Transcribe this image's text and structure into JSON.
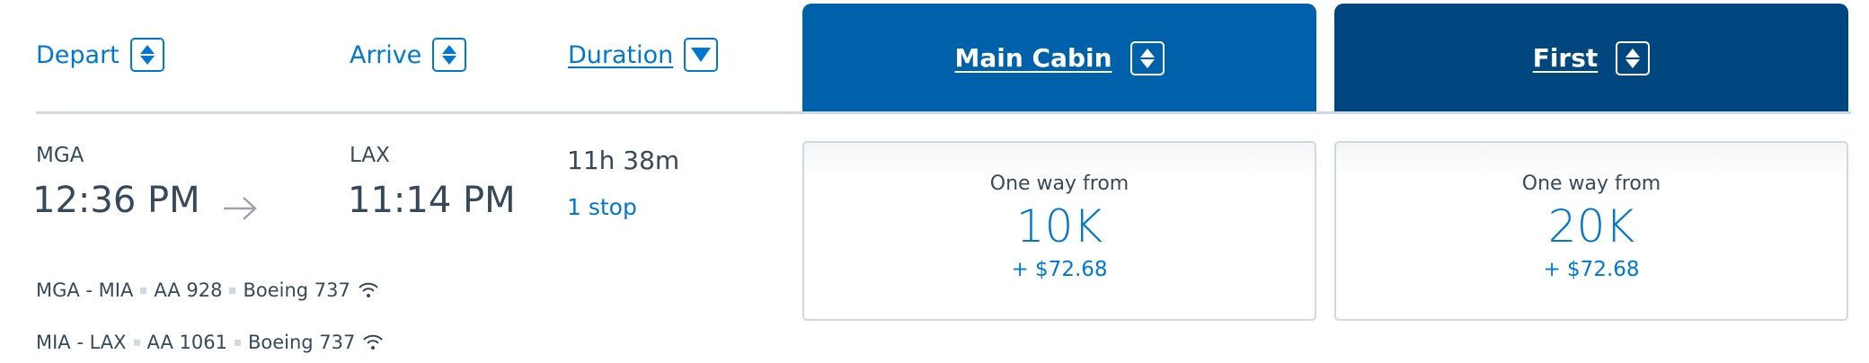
{
  "colors": {
    "link": "#0078d2",
    "main_cabin": "#0061ab",
    "first": "#00467f",
    "text": "#36495a"
  },
  "headers": {
    "depart": {
      "label": "Depart",
      "icon": "sort-both-icon"
    },
    "arrive": {
      "label": "Arrive",
      "icon": "sort-both-icon"
    },
    "duration": {
      "label": "Duration",
      "icon": "sort-down-icon"
    },
    "main_cabin": {
      "label": "Main Cabin",
      "icon": "sort-both-icon"
    },
    "first": {
      "label": "First",
      "icon": "sort-both-icon"
    }
  },
  "flight": {
    "origin": "MGA",
    "depart_time": "12:36 PM",
    "destination": "LAX",
    "arrive_time": "11:14 PM",
    "duration": "11h 38m",
    "stops": "1 stop",
    "segments": [
      {
        "route": "MGA - MIA",
        "flight": "AA 928",
        "aircraft": "Boeing 737",
        "wifi": true
      },
      {
        "route": "MIA - LAX",
        "flight": "AA 1061",
        "aircraft": "Boeing 737",
        "wifi": true
      }
    ],
    "fares": [
      {
        "label": "One way from",
        "miles": "10K",
        "fee": "+ $72.68"
      },
      {
        "label": "One way from",
        "miles": "20K",
        "fee": "+ $72.68"
      }
    ]
  }
}
